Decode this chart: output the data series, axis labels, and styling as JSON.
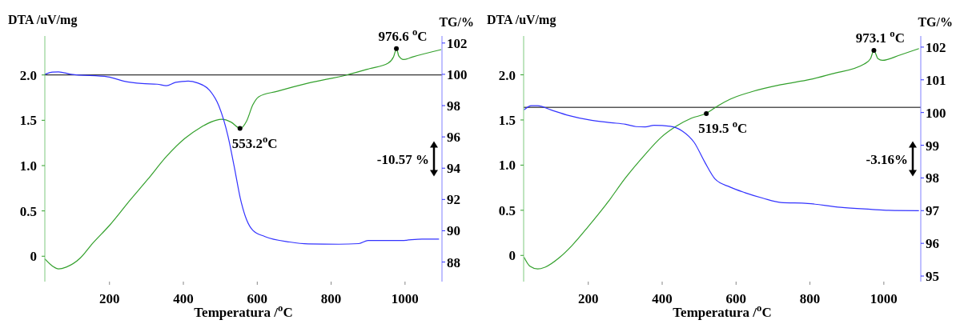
{
  "chart_data": [
    {
      "type": "line",
      "ylabel": "DTA /uV/mg",
      "y2label": "TG/%",
      "xlabel": "Temperatura /$^{o}$C",
      "xlim": [
        25,
        1100
      ],
      "xticks": [
        200,
        400,
        600,
        800,
        1000
      ],
      "ylim": [
        -0.28,
        2.43
      ],
      "yticks": [
        {
          "value": 0,
          "label": "0"
        },
        {
          "value": 0.5,
          "label": "0.5"
        },
        {
          "value": 1,
          "label": "1.0"
        },
        {
          "value": 1.5,
          "label": "1.5"
        },
        {
          "value": 2,
          "label": "2.0"
        }
      ],
      "y2lim": [
        86.75,
        102.45
      ],
      "y2ticks": [
        88,
        90,
        92,
        94,
        96,
        98,
        100,
        102
      ],
      "grid": false,
      "ref_lines": [
        {
          "axis": "y",
          "value": 2.0,
          "color": "#000000"
        }
      ],
      "annotations": [
        {
          "text": "976.6 $^{o}$C",
          "x": 976.6,
          "y": 2.29
        },
        {
          "text": "553.2$^{o}$C",
          "x": 553.2,
          "y": 1.41
        },
        "-10.57 %"
      ],
      "series": [
        {
          "color": "#33a02c",
          "x": [
            25,
            46,
            62,
            83,
            121,
            154,
            200,
            254,
            304,
            354,
            404,
            446,
            488,
            504,
            529,
            554,
            571,
            588,
            604,
            654,
            738,
            842,
            904,
            954,
            969,
            977,
            983,
            996,
            1021,
            1098
          ],
          "values": [
            -0.03,
            -0.11,
            -0.14,
            -0.12,
            -0.02,
            0.14,
            0.34,
            0.61,
            0.85,
            1.1,
            1.3,
            1.42,
            1.5,
            1.51,
            1.48,
            1.41,
            1.49,
            1.67,
            1.76,
            1.82,
            1.91,
            2.0,
            2.07,
            2.13,
            2.2,
            2.29,
            2.21,
            2.17,
            2.2,
            2.28
          ]
        },
        {
          "color": "#3333ff",
          "axis": "y2",
          "x": [
            25,
            46,
            62,
            96,
            196,
            238,
            288,
            329,
            354,
            379,
            413,
            438,
            471,
            496,
            521,
            538,
            554,
            571,
            588,
            621,
            688,
            738,
            821,
            875,
            900,
            988,
            1046,
            1092
          ],
          "values": [
            100.0,
            100.14,
            100.16,
            100.0,
            99.84,
            99.57,
            99.41,
            99.37,
            99.27,
            99.49,
            99.57,
            99.45,
            98.98,
            97.99,
            96.03,
            94.06,
            92.09,
            90.71,
            90.03,
            89.63,
            89.28,
            89.16,
            89.14,
            89.18,
            89.38,
            89.38,
            89.47,
            89.47
          ]
        }
      ]
    },
    {
      "type": "line",
      "ylabel": "DTA /uV/mg",
      "y2label": "TG/%",
      "xlabel": "Temperatura /$^{o}$C",
      "xlim": [
        25,
        1100
      ],
      "xticks": [
        200,
        400,
        600,
        800,
        1000
      ],
      "ylim": [
        -0.29,
        2.43
      ],
      "yticks": [
        {
          "value": 0,
          "label": "0"
        },
        {
          "value": 0.5,
          "label": "0.5"
        },
        {
          "value": 1,
          "label": "1.0"
        },
        {
          "value": 1.5,
          "label": "1.5"
        },
        {
          "value": 2,
          "label": "2.0"
        }
      ],
      "y2lim": [
        94.83,
        102.34
      ],
      "y2ticks": [
        95,
        96,
        97,
        98,
        99,
        100,
        101,
        102
      ],
      "grid": false,
      "ref_lines": [
        {
          "axis": "y",
          "value": 1.64,
          "color": "#000000"
        }
      ],
      "annotations": [
        {
          "text": "973.1 $^{o}$C",
          "x": 973.1,
          "y": 2.27
        },
        {
          "text": "519.5 $^{o}$C",
          "x": 519.5,
          "y": 1.57
        },
        "-3.16%"
      ],
      "series": [
        {
          "color": "#33a02c",
          "x": [
            26,
            42,
            63,
            83,
            123,
            156,
            200,
            253,
            301,
            350,
            398,
            438,
            479,
            518,
            552,
            584,
            640,
            721,
            802,
            859,
            947,
            964,
            973,
            984,
            996,
            1044,
            1095
          ],
          "values": [
            -0.02,
            -0.12,
            -0.15,
            -0.13,
            -0.02,
            0.11,
            0.32,
            0.59,
            0.86,
            1.1,
            1.31,
            1.43,
            1.52,
            1.57,
            1.66,
            1.73,
            1.81,
            1.89,
            1.95,
            2.01,
            2.12,
            2.18,
            2.27,
            2.18,
            2.16,
            2.22,
            2.29
          ]
        },
        {
          "color": "#3333ff",
          "axis": "y2",
          "x": [
            26,
            46,
            63,
            99,
            147,
            200,
            261,
            301,
            329,
            354,
            378,
            422,
            455,
            487,
            515,
            543,
            584,
            624,
            673,
            721,
            794,
            883,
            964,
            1013,
            1095
          ],
          "values": [
            100.08,
            100.21,
            100.21,
            100.08,
            99.91,
            99.78,
            99.69,
            99.64,
            99.57,
            99.56,
            99.61,
            99.58,
            99.43,
            99.08,
            98.49,
            97.97,
            97.72,
            97.55,
            97.38,
            97.25,
            97.22,
            97.1,
            97.04,
            97.01,
            97.0
          ]
        }
      ]
    }
  ]
}
